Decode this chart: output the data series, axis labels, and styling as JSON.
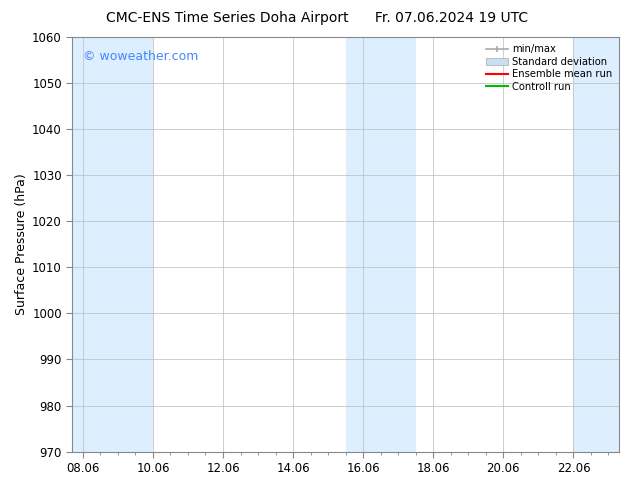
{
  "title_left": "CMC-ENS Time Series Doha Airport",
  "title_right": "Fr. 07.06.2024 19 UTC",
  "ylabel": "Surface Pressure (hPa)",
  "xlabel": "",
  "ylim": [
    970,
    1060
  ],
  "yticks": [
    970,
    980,
    990,
    1000,
    1010,
    1020,
    1030,
    1040,
    1050,
    1060
  ],
  "xtick_labels": [
    "08.06",
    "10.06",
    "12.06",
    "14.06",
    "16.06",
    "18.06",
    "20.06",
    "22.06"
  ],
  "xtick_positions": [
    0,
    2,
    4,
    6,
    8,
    10,
    12,
    14
  ],
  "xlim": [
    -0.3,
    15.3
  ],
  "watermark": "© woweather.com",
  "watermark_color": "#4488ff",
  "bg_color": "#ffffff",
  "plot_bg_color": "#ffffff",
  "shaded_bands": [
    {
      "x_start": -0.3,
      "x_end": 2.0,
      "color": "#ddeeff",
      "alpha": 1.0
    },
    {
      "x_start": 7.5,
      "x_end": 9.5,
      "color": "#ddeeff",
      "alpha": 1.0
    },
    {
      "x_start": 14.0,
      "x_end": 15.3,
      "color": "#ddeeff",
      "alpha": 1.0
    }
  ],
  "legend_minmax_color": "#aaaaaa",
  "legend_std_color": "#c8dff0",
  "legend_std_edge": "#aaaaaa",
  "legend_mean_color": "#ff0000",
  "legend_ctrl_color": "#00bb00",
  "title_fontsize": 10,
  "tick_fontsize": 8.5,
  "ylabel_fontsize": 9,
  "watermark_fontsize": 9,
  "grid_color": "#bbbbbb",
  "grid_linewidth": 0.5,
  "spine_color": "#888888"
}
